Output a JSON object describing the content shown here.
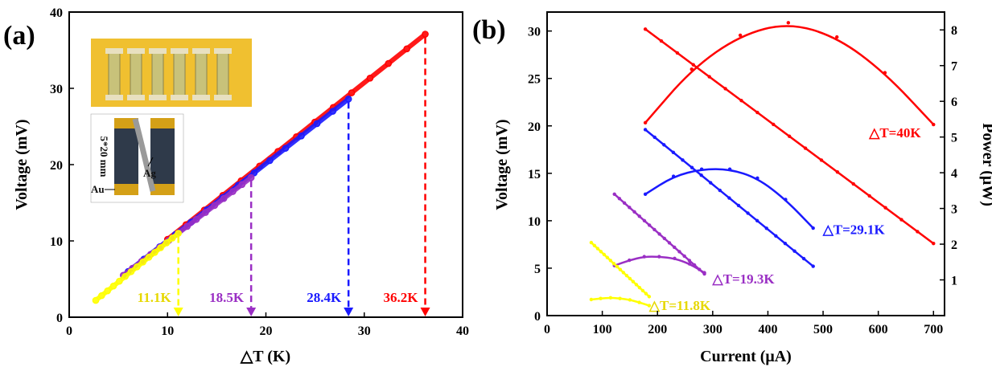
{
  "colors": {
    "yellow": "#ffff00",
    "purple": "#9a2fc4",
    "blue": "#1a1aff",
    "red": "#ff0000",
    "yellow_text": "#e6d800",
    "inset_bg": "#f0c030",
    "inset_dark": "#2f3a4a",
    "inset_gold": "#d4a017"
  },
  "panel_a": {
    "label": "(a)",
    "xlabel": "△T (K)",
    "ylabel": "Voltage (mV)",
    "inset": {
      "dim_label": "5*20 mm",
      "ag_label": "Ag",
      "au_label": "Au"
    }
  },
  "panel_b": {
    "label": "(b)",
    "xlabel": "Current (μA)",
    "ylabel_left": "Voltage (mV)",
    "ylabel_right": "Power (μW)"
  },
  "chart_data": [
    {
      "type": "line",
      "title": "",
      "xlabel": "△T (K)",
      "ylabel": "Voltage (mV)",
      "xlim": [
        0,
        40
      ],
      "ylim": [
        0,
        40
      ],
      "x_ticks": [
        0,
        10,
        20,
        30,
        40
      ],
      "y_ticks": [
        0,
        10,
        20,
        30,
        40
      ],
      "series": [
        {
          "color": "yellow",
          "x": [
            2.7,
            11.1
          ],
          "y": [
            2.2,
            11.0
          ]
        },
        {
          "color": "purple",
          "x": [
            5.5,
            18.5
          ],
          "y": [
            5.5,
            18.3
          ]
        },
        {
          "color": "blue",
          "x": [
            6.0,
            28.4
          ],
          "y": [
            6.0,
            28.6
          ]
        },
        {
          "color": "red",
          "x": [
            10.0,
            36.2
          ],
          "y": [
            10.2,
            37.1
          ]
        }
      ],
      "annotations": [
        {
          "text": "11.1K",
          "x": 11.1,
          "color": "yellow"
        },
        {
          "text": "18.5K",
          "x": 18.5,
          "color": "purple"
        },
        {
          "text": "28.4K",
          "x": 28.4,
          "color": "blue"
        },
        {
          "text": "36.2K",
          "x": 36.2,
          "color": "red"
        }
      ]
    },
    {
      "type": "line",
      "title": "",
      "xlabel": "Current (μA)",
      "ylabel": "Voltage (mV)",
      "y2label": "Power (μW)",
      "xlim": [
        0,
        720
      ],
      "ylim": [
        0,
        32
      ],
      "y2lim": [
        0,
        8.5
      ],
      "x_ticks": [
        0,
        100,
        200,
        300,
        400,
        500,
        600,
        700
      ],
      "y_ticks": [
        0,
        5,
        10,
        15,
        20,
        25,
        30
      ],
      "y2_ticks": [
        1,
        2,
        3,
        4,
        5,
        6,
        7,
        8
      ],
      "series": [
        {
          "name": "△T=40K",
          "color": "red",
          "voltage": {
            "x": [
              178,
              700
            ],
            "y": [
              30.2,
              7.6
            ]
          },
          "power": {
            "x": [
              178,
              262,
              350,
              437,
              525,
              612,
              700
            ],
            "y": [
              5.4,
              6.9,
              7.85,
              8.2,
              7.8,
              6.8,
              5.35
            ]
          }
        },
        {
          "name": "△T=29.1K",
          "color": "blue",
          "voltage": {
            "x": [
              178,
              482
            ],
            "y": [
              19.6,
              5.2
            ]
          },
          "power": {
            "x": [
              178,
              229,
              280,
              331,
              381,
              432,
              482
            ],
            "y": [
              3.4,
              3.9,
              4.1,
              4.1,
              3.85,
              3.25,
              2.45
            ]
          }
        },
        {
          "name": "△T=19.3K",
          "color": "purple",
          "voltage": {
            "x": [
              122,
              285
            ],
            "y": [
              12.8,
              4.4
            ]
          },
          "power": {
            "x": [
              122,
              149,
              176,
              203,
              231,
              258,
              285
            ],
            "y": [
              1.4,
              1.55,
              1.65,
              1.65,
              1.6,
              1.45,
              1.2
            ]
          }
        },
        {
          "name": "△T=11.8K",
          "color": "yellow",
          "voltage": {
            "x": [
              80,
              185
            ],
            "y": [
              7.7,
              2.0
            ]
          },
          "power": {
            "x": [
              80,
              97,
              115,
              132,
              150,
              167,
              185
            ],
            "y": [
              0.45,
              0.48,
              0.5,
              0.48,
              0.44,
              0.37,
              0.28
            ]
          }
        }
      ]
    }
  ]
}
